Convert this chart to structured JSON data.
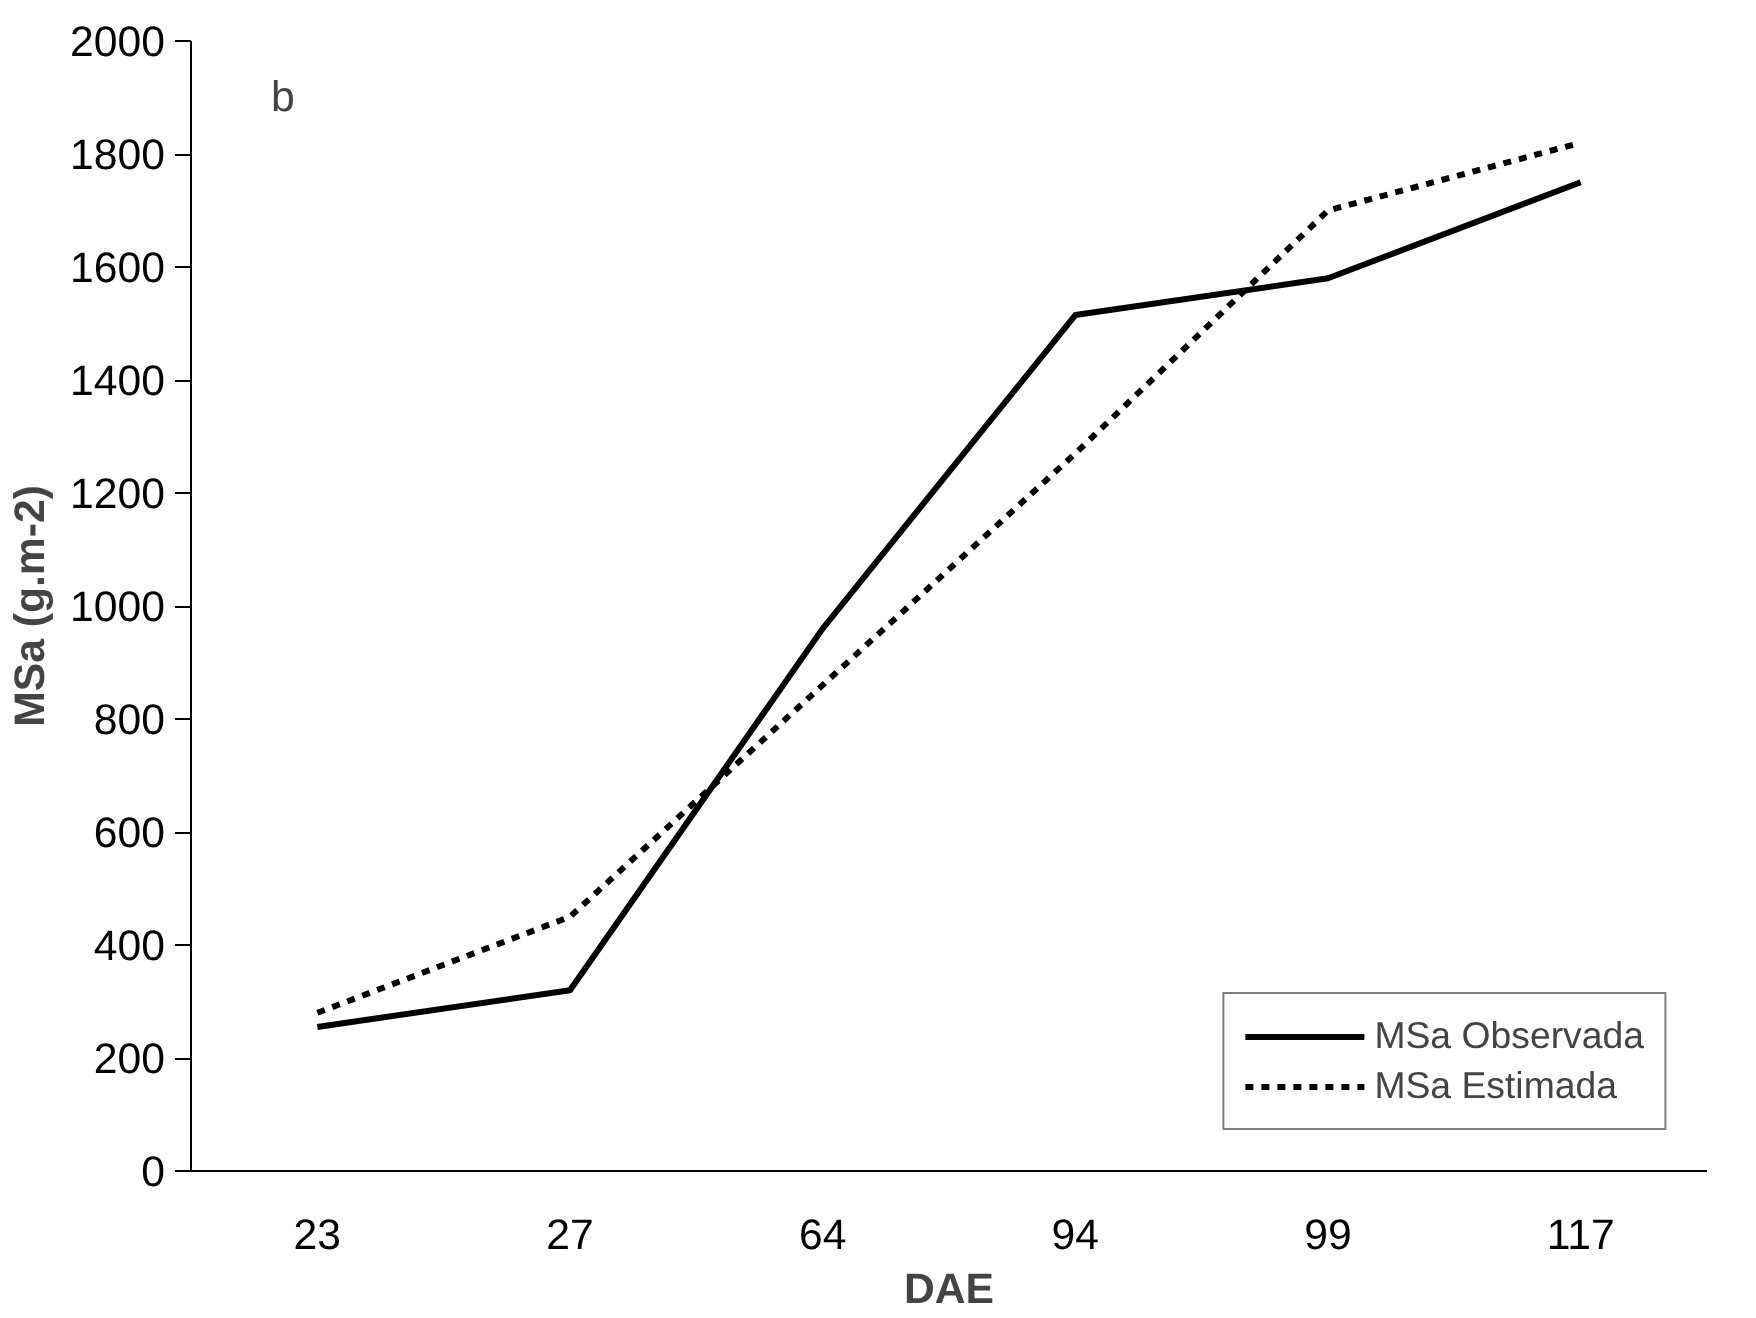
{
  "chart_data": {
    "type": "line",
    "xlabel": "DAE",
    "ylabel": "MSa (g.m-2)",
    "categories": [
      "23",
      "27",
      "64",
      "94",
      "99",
      "117"
    ],
    "series": [
      {
        "name": "MSa Observada",
        "color": "#000000",
        "line_style": "solid",
        "values": [
          255,
          320,
          960,
          1515,
          1580,
          1750
        ]
      },
      {
        "name": "MSa Estimada",
        "color": "#000000",
        "line_style": "dashed",
        "values": [
          280,
          450,
          860,
          1270,
          1700,
          1820
        ]
      }
    ],
    "ylim": [
      0,
      2000
    ],
    "yticks": [
      0,
      200,
      400,
      600,
      800,
      1000,
      1200,
      1400,
      1600,
      1800,
      2000
    ],
    "grid": false,
    "legend": "bottom right",
    "marker": "none",
    "annotations": [
      "b"
    ]
  }
}
